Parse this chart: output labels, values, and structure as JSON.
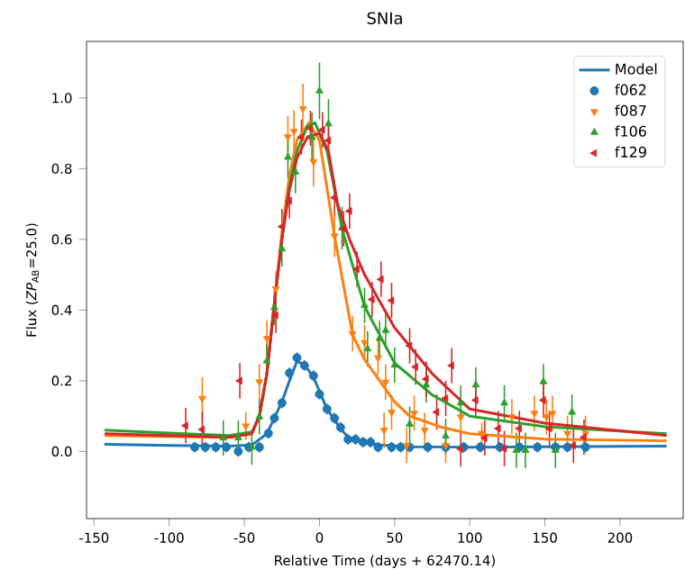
{
  "chart_data": {
    "type": "scatter",
    "title": "SNIa",
    "xlabel": "Relative Time (days + 62470.14)",
    "ylabel": "Flux (*ZP*$_{AB}$=25.0)",
    "xlim": [
      -155,
      242
    ],
    "ylim": [
      -0.19,
      1.16
    ],
    "xticks": [
      -150,
      -100,
      -50,
      0,
      50,
      100,
      150,
      200
    ],
    "yticks": [
      {
        "value": 0,
        "label": "0.0"
      },
      {
        "value": 0.2,
        "label": "0.2"
      },
      {
        "value": 0.4,
        "label": "0.4"
      },
      {
        "value": 0.6,
        "label": "0.6"
      },
      {
        "value": 0.8,
        "label": "0.8"
      },
      {
        "value": 1.0,
        "label": "1.0"
      }
    ],
    "legend": "top right",
    "grid": false,
    "series": [
      {
        "name": "Model",
        "type": "line",
        "color": "#1f77b4",
        "marker": "none",
        "x": [
          -143,
          -100,
          -60,
          -45,
          -35,
          -25,
          -20,
          -15,
          -10,
          -4,
          0,
          5,
          10,
          14,
          19,
          24,
          30,
          40,
          60,
          100,
          150,
          231
        ],
        "values": [
          0.02,
          0.017,
          0.015,
          0.018,
          0.05,
          0.14,
          0.2,
          0.255,
          0.245,
          0.21,
          0.17,
          0.12,
          0.09,
          0.065,
          0.04,
          0.03,
          0.025,
          0.018,
          0.013,
          0.012,
          0.013,
          0.015
        ]
      },
      {
        "name": "f062",
        "color": "#1f77b4",
        "marker": "circle",
        "x": [
          -83,
          -76,
          -69,
          -62,
          -54,
          -47,
          -40,
          -34,
          -30,
          -25,
          -20,
          -15,
          -10,
          -4,
          0,
          5,
          10,
          14,
          19,
          24,
          29,
          34,
          39,
          48,
          54,
          60,
          72,
          84,
          96,
          107,
          120,
          133,
          145,
          157,
          165,
          177
        ],
        "values": [
          0.012,
          0.012,
          0.012,
          0.012,
          0.0,
          0.012,
          0.012,
          0.051,
          0.094,
          0.137,
          0.222,
          0.265,
          0.243,
          0.214,
          0.162,
          0.12,
          0.094,
          0.068,
          0.034,
          0.034,
          0.026,
          0.026,
          0.012,
          0.012,
          0.012,
          0.012,
          0.012,
          0.012,
          0.012,
          0.012,
          0.012,
          0.012,
          0.012,
          0.012,
          0.012,
          0.012
        ],
        "errors": [
          0.015,
          0.015,
          0.015,
          0.015,
          0.015,
          0.015,
          0.015,
          0.015,
          0.015,
          0.015,
          0.015,
          0.015,
          0.015,
          0.015,
          0.015,
          0.015,
          0.015,
          0.015,
          0.015,
          0.015,
          0.015,
          0.015,
          0.015,
          0.015,
          0.015,
          0.015,
          0.015,
          0.015,
          0.015,
          0.015,
          0.015,
          0.015,
          0.015,
          0.015,
          0.015,
          0.015
        ]
      },
      {
        "name": "f087",
        "color": "#ff7f0e",
        "marker": "triangle-down",
        "x": [
          -78,
          -49,
          -40,
          -35,
          -29,
          -21,
          -17,
          -11,
          -4,
          10,
          22,
          30,
          39,
          43,
          44,
          48,
          58,
          63,
          70,
          84,
          94,
          108,
          128,
          143,
          151,
          155,
          165,
          177
        ],
        "values": [
          0.15,
          0.072,
          0.197,
          0.32,
          0.46,
          0.89,
          0.906,
          0.97,
          0.82,
          0.61,
          0.333,
          0.308,
          0.265,
          0.06,
          0.196,
          0.111,
          0.017,
          0.108,
          0.06,
          0.017,
          0.098,
          0.051,
          0.098,
          0.108,
          0.098,
          0.108,
          0.051,
          0.051
        ],
        "errors": [
          0.06,
          0.04,
          0.05,
          0.05,
          0.05,
          0.06,
          0.06,
          0.07,
          0.07,
          0.06,
          0.05,
          0.05,
          0.05,
          0.05,
          0.05,
          0.05,
          0.05,
          0.05,
          0.05,
          0.05,
          0.05,
          0.03,
          0.05,
          0.05,
          0.05,
          0.05,
          0.05,
          0.05
        ]
      },
      {
        "name": "f106",
        "color": "#2ca02c",
        "marker": "triangle",
        "x": [
          -64,
          -54,
          -45,
          -40,
          -35,
          -30,
          -25,
          -21,
          -16,
          -5,
          0,
          6,
          15,
          30,
          32,
          40,
          44,
          50,
          60,
          71,
          84,
          94,
          104,
          123,
          131,
          137,
          149,
          157,
          168
        ],
        "values": [
          0.038,
          0.038,
          0.012,
          0.098,
          0.256,
          0.407,
          0.573,
          0.832,
          0.79,
          0.889,
          1.02,
          0.927,
          0.632,
          0.413,
          0.29,
          0.32,
          0.342,
          0.244,
          0.077,
          0.188,
          0.043,
          0.137,
          0.188,
          0.137,
          0.003,
          0.003,
          0.197,
          0.003,
          0.111
        ],
        "errors": [
          0.05,
          0.05,
          0.05,
          0.05,
          0.05,
          0.05,
          0.05,
          0.06,
          0.06,
          0.07,
          0.08,
          0.07,
          0.06,
          0.05,
          0.05,
          0.05,
          0.05,
          0.05,
          0.05,
          0.05,
          0.05,
          0.05,
          0.05,
          0.05,
          0.05,
          0.05,
          0.05,
          0.05,
          0.05
        ]
      },
      {
        "name": "f129",
        "color": "#d62728",
        "marker": "triangle-left",
        "x": [
          -89,
          -78,
          -53,
          -29,
          -25,
          -20,
          -12,
          -6,
          2,
          6,
          10,
          16,
          20,
          25,
          35,
          41,
          48,
          60,
          64,
          71,
          78,
          84,
          88,
          94,
          104,
          110,
          119,
          123,
          133,
          149,
          153,
          169,
          176
        ],
        "values": [
          0.073,
          0.062,
          0.2,
          0.385,
          0.636,
          0.709,
          0.889,
          0.914,
          0.91,
          0.88,
          0.718,
          0.63,
          0.68,
          0.516,
          0.43,
          0.487,
          0.427,
          0.299,
          0.239,
          0.205,
          0.111,
          0.15,
          0.243,
          0.007,
          0.145,
          0.038,
          0.065,
          0.008,
          0.065,
          0.145,
          0.065,
          0.017,
          0.04
        ],
        "errors": [
          0.05,
          0.05,
          0.05,
          0.05,
          0.05,
          0.05,
          0.05,
          0.05,
          0.05,
          0.05,
          0.05,
          0.05,
          0.05,
          0.05,
          0.05,
          0.05,
          0.05,
          0.05,
          0.05,
          0.05,
          0.05,
          0.05,
          0.05,
          0.05,
          0.05,
          0.05,
          0.05,
          0.05,
          0.05,
          0.05,
          0.05,
          0.05,
          0.05
        ]
      },
      {
        "type": "line",
        "color": "#ff7f0e",
        "marker": "none",
        "x": [
          -143,
          -100,
          -60,
          -45,
          -40,
          -35,
          -30,
          -25,
          -20,
          -15,
          -7,
          0,
          10,
          22,
          30,
          40,
          50,
          60,
          80,
          100,
          150,
          231
        ],
        "values": [
          0.045,
          0.042,
          0.04,
          0.05,
          0.1,
          0.22,
          0.42,
          0.62,
          0.78,
          0.88,
          0.93,
          0.88,
          0.61,
          0.33,
          0.26,
          0.2,
          0.14,
          0.1,
          0.07,
          0.05,
          0.035,
          0.03
        ]
      },
      {
        "type": "line",
        "color": "#2ca02c",
        "marker": "none",
        "x": [
          -143,
          -100,
          -60,
          -45,
          -40,
          -35,
          -30,
          -25,
          -20,
          -15,
          -8,
          -3,
          5,
          15,
          30,
          50,
          75,
          100,
          150,
          231
        ],
        "values": [
          0.06,
          0.052,
          0.045,
          0.055,
          0.1,
          0.22,
          0.42,
          0.6,
          0.75,
          0.85,
          0.92,
          0.93,
          0.85,
          0.63,
          0.41,
          0.25,
          0.16,
          0.1,
          0.07,
          0.05
        ]
      },
      {
        "type": "line",
        "color": "#d62728",
        "marker": "none",
        "x": [
          -143,
          -100,
          -60,
          -45,
          -40,
          -35,
          -30,
          -25,
          -20,
          -15,
          -8,
          0,
          6,
          12,
          20,
          30,
          50,
          75,
          100,
          150,
          231
        ],
        "values": [
          0.05,
          0.045,
          0.04,
          0.05,
          0.1,
          0.22,
          0.42,
          0.6,
          0.74,
          0.83,
          0.89,
          0.9,
          0.85,
          0.7,
          0.6,
          0.5,
          0.35,
          0.22,
          0.12,
          0.08,
          0.045
        ]
      }
    ]
  }
}
